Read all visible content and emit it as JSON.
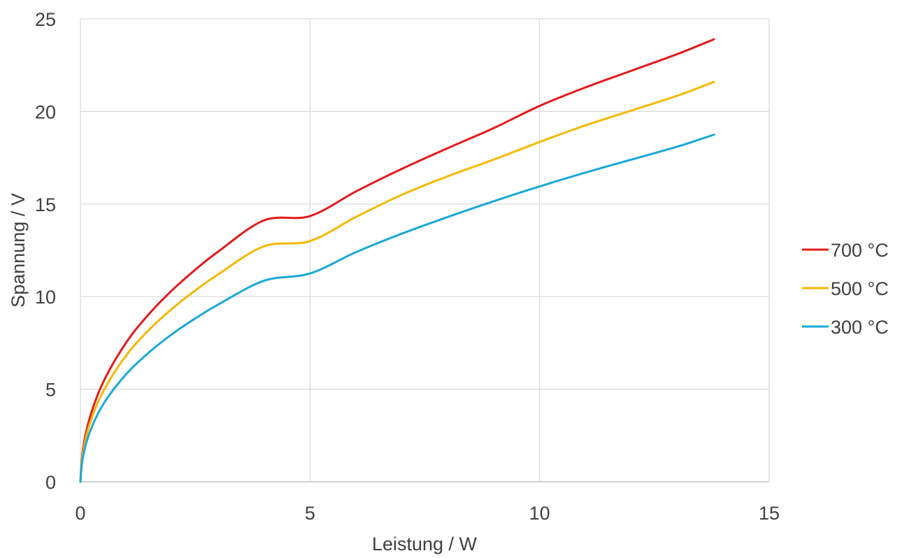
{
  "chart_data": {
    "type": "line",
    "title": "",
    "xlabel": "Leistung / W",
    "ylabel": "Spannung / V",
    "xlim": [
      0,
      15
    ],
    "ylim": [
      0,
      25
    ],
    "x_ticks": [
      0,
      5,
      10,
      15
    ],
    "y_ticks": [
      0,
      5,
      10,
      15,
      20,
      25
    ],
    "x_tick_labels": [
      "0",
      "5",
      "10",
      "15"
    ],
    "y_tick_labels": [
      "0",
      "5",
      "10",
      "15",
      "20",
      "25"
    ],
    "grid": true,
    "legend_position": "right",
    "x": [
      0,
      0.05,
      0.2,
      0.5,
      1,
      1.5,
      2,
      2.5,
      3,
      4,
      5,
      6,
      7,
      8,
      9,
      10,
      11,
      12,
      13,
      13.8
    ],
    "series": [
      {
        "name": "700 °C",
        "color": "#e31a1c",
        "values": [
          0,
          1.66,
          3.42,
          5.4,
          7.53,
          9.08,
          10.35,
          11.45,
          12.43,
          14.12,
          14.35,
          15.68,
          16.9,
          18.02,
          19.1,
          20.3,
          21.3,
          22.2,
          23.1,
          23.9
        ]
      },
      {
        "name": "500 °C",
        "color": "#f5b800",
        "values": [
          0,
          1.47,
          3.1,
          4.9,
          6.83,
          8.22,
          9.35,
          10.33,
          11.2,
          12.72,
          13.0,
          14.3,
          15.5,
          16.5,
          17.4,
          18.35,
          19.25,
          20.05,
          20.85,
          21.6
        ]
      },
      {
        "name": "300 °C",
        "color": "#1aa8d8",
        "values": [
          0,
          1.25,
          2.65,
          4.2,
          5.82,
          7.0,
          7.98,
          8.82,
          9.57,
          10.86,
          11.25,
          12.4,
          13.4,
          14.3,
          15.15,
          15.95,
          16.7,
          17.4,
          18.1,
          18.75
        ]
      }
    ]
  }
}
